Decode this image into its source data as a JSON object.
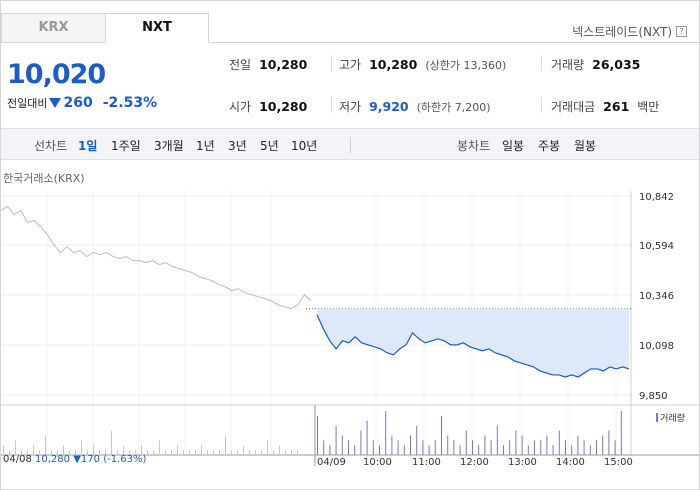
{
  "tabs": [
    {
      "label": "KRX",
      "active": false
    },
    {
      "label": "NXT",
      "active": true
    }
  ],
  "provider": "넥스트레이드(NXT)",
  "help_icon": "?",
  "price": {
    "current": "10,020",
    "change_label": "전일대비",
    "change_amount": "260",
    "change_direction": "down",
    "change_percent": "-2.53%"
  },
  "stats": {
    "prev_close": {
      "label": "전일",
      "value": "10,280"
    },
    "open": {
      "label": "시가",
      "value": "10,280"
    },
    "high": {
      "label": "고가",
      "value": "10,280",
      "sub": "(상한가 13,360)"
    },
    "low": {
      "label": "저가",
      "value": "9,920",
      "sub": "(하한가 7,200)"
    },
    "volume": {
      "label": "거래량",
      "value": "26,035"
    },
    "amount": {
      "label": "거래대금",
      "value": "261",
      "unit": "백만"
    }
  },
  "line_chart": {
    "label": "선차트",
    "periods": [
      "1일",
      "1주일",
      "3개월",
      "1년",
      "3년",
      "5년",
      "10년"
    ],
    "active": "1일"
  },
  "candle_chart": {
    "label": "봉차트",
    "periods": [
      "일봉",
      "주봉",
      "월봉"
    ]
  },
  "exchange_label": "한국거래소(KRX)",
  "colors": {
    "blue": "#1a5dc8",
    "area": "#dde9f8",
    "prev_line": "#bdbdbd",
    "volume": "#8a6fc4"
  },
  "chart_data": {
    "type": "line",
    "y_ticks": [
      "10,842",
      "10,594",
      "10,346",
      "10,098",
      "9,850"
    ],
    "ylim": [
      9850,
      10842
    ],
    "x_ticks": [
      "04/09",
      "10:00",
      "11:00",
      "12:00",
      "13:00",
      "14:00",
      "15:00"
    ],
    "reference_value": 10280,
    "prev_day": {
      "date": "04/08",
      "close": "10,280",
      "change": "170",
      "change_percent": "(-1.63%)",
      "values": [
        10770,
        10790,
        10750,
        10770,
        10710,
        10720,
        10690,
        10650,
        10600,
        10560,
        10590,
        10560,
        10570,
        10540,
        10560,
        10550,
        10560,
        10540,
        10530,
        10540,
        10520,
        10520,
        10510,
        10520,
        10500,
        10510,
        10490,
        10480,
        10470,
        10460,
        10440,
        10430,
        10420,
        10400,
        10390,
        10370,
        10380,
        10360,
        10350,
        10340,
        10330,
        10320,
        10300,
        10290,
        10280,
        10300,
        10350,
        10320
      ]
    },
    "today": {
      "values": [
        10250,
        10180,
        10120,
        10080,
        10120,
        10110,
        10140,
        10110,
        10100,
        10090,
        10080,
        10060,
        10050,
        10080,
        10100,
        10160,
        10130,
        10110,
        10120,
        10130,
        10120,
        10100,
        10100,
        10110,
        10090,
        10080,
        10070,
        10080,
        10060,
        10050,
        10040,
        10020,
        10010,
        10000,
        9990,
        9970,
        9960,
        9950,
        9950,
        9940,
        9950,
        9940,
        9960,
        9980,
        9980,
        9970,
        9990,
        9980,
        9990,
        9980
      ]
    },
    "volume_legend": "거래량",
    "volume": [
      2,
      1,
      3,
      1,
      1,
      2,
      1,
      4,
      1,
      1,
      2,
      1,
      1,
      3,
      1,
      2,
      1,
      1,
      5,
      1,
      2,
      1,
      1,
      2,
      1,
      1,
      3,
      1,
      1,
      2,
      1,
      1,
      1,
      2,
      1,
      1,
      1,
      4,
      1,
      1,
      2,
      1,
      1,
      1,
      3,
      1,
      2,
      1,
      1,
      1,
      8,
      3,
      2,
      6,
      4,
      3,
      2,
      5,
      7,
      3,
      2,
      9,
      4,
      3,
      2,
      4,
      6,
      3,
      2,
      3,
      8,
      4,
      3,
      2,
      5,
      3,
      2,
      4,
      3,
      6,
      2,
      3,
      5,
      4,
      2,
      3,
      3,
      4,
      2,
      5,
      3,
      2,
      4,
      3,
      2,
      3,
      4,
      5,
      3,
      9
    ]
  }
}
